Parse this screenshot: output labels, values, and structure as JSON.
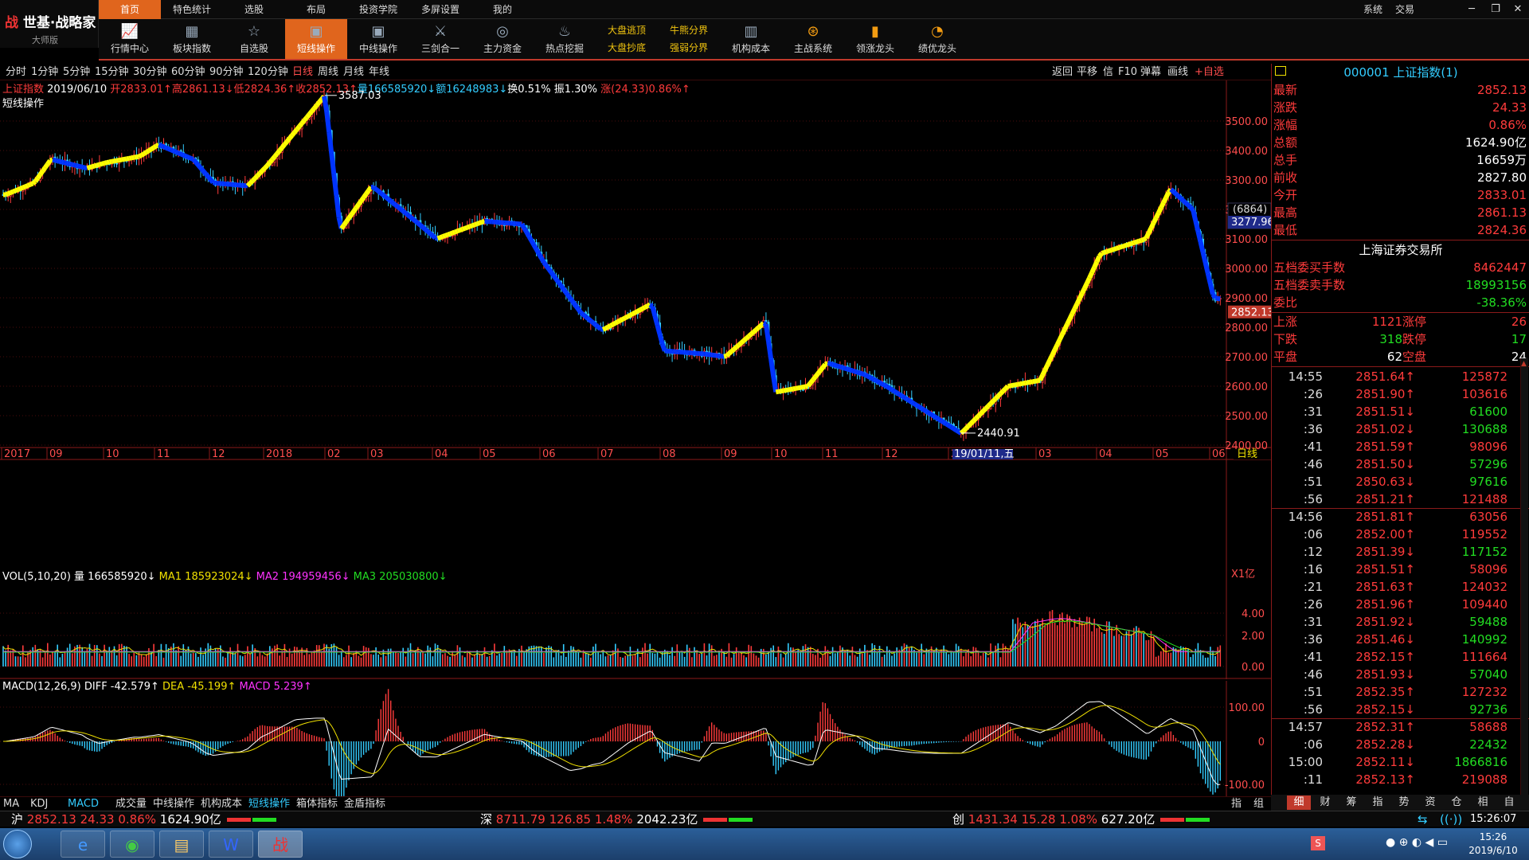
{
  "app": {
    "brand_logo": "世基·战略家",
    "edition": "大师版"
  },
  "menu": [
    "首页",
    "特色统计",
    "选股",
    "布局",
    "投资学院",
    "多屏设置",
    "我的"
  ],
  "sys_menu": [
    "系统",
    "交易"
  ],
  "toolbar": [
    {
      "label": "行情中心",
      "icon": "chart-line-icon"
    },
    {
      "label": "板块指数",
      "icon": "grid-icon"
    },
    {
      "label": "自选股",
      "icon": "star-doc-icon"
    },
    {
      "label": "短线操作",
      "icon": "monitor-icon",
      "active": true
    },
    {
      "label": "中线操作",
      "icon": "monitor-icon"
    },
    {
      "label": "三剑合一",
      "icon": "swords-icon"
    },
    {
      "label": "主力资金",
      "icon": "coins-icon"
    },
    {
      "label": "热点挖掘",
      "icon": "fire-icon"
    }
  ],
  "toolbar_pairs": [
    {
      "l1": "大盘逃顶",
      "l2": "大盘抄底"
    },
    {
      "l1": "牛熊分界",
      "l2": "强弱分界"
    }
  ],
  "toolbar_more": [
    {
      "label": "机构成本",
      "icon": "building-icon"
    },
    {
      "label": "主战系统",
      "icon": "target-icon"
    },
    {
      "label": "领涨龙头",
      "icon": "bars-icon"
    },
    {
      "label": "绩优龙头",
      "icon": "pie-icon"
    }
  ],
  "periods": [
    "分时",
    "1分钟",
    "5分钟",
    "15分钟",
    "30分钟",
    "60分钟",
    "90分钟",
    "120分钟",
    "日线",
    "周线",
    "月线",
    "年线"
  ],
  "active_period": "日线",
  "right_buttons": [
    "返回",
    "平移",
    "信",
    "F10",
    "弹幕",
    "画线",
    "+自选"
  ],
  "info": {
    "name": "上证指数",
    "date": "2019/06/10",
    "open": "开2833.01↑",
    "high": "高2861.13↓",
    "low": "低2824.36↑",
    "close": "收2852.13↑",
    "vol": "量166585920↓",
    "amt": "额16248983↓",
    "turn": "换0.51%",
    "amp": "振1.30%",
    "chg": "涨(24.33)0.86%↑",
    "indicator": "短线操作"
  },
  "annotations": {
    "high": "3587.03",
    "low": "2440.91",
    "current": "2852.13",
    "cursor_count": "(6864)",
    "cursor_price": "3277.96",
    "cursor_date": "19/01/11,五"
  },
  "price_axis": [
    "3500.00",
    "3400.00",
    "3300.00",
    "3200.00",
    "3100.00",
    "3000.00",
    "2900.00",
    "2800.00",
    "2700.00",
    "2600.00",
    "2500.00",
    "2400.00"
  ],
  "time_axis": [
    "2017",
    "09",
    "10",
    "11",
    "12",
    "2018",
    "02",
    "03",
    "04",
    "05",
    "06",
    "07",
    "08",
    "09",
    "10",
    "11",
    "12",
    "20",
    "03",
    "04",
    "05",
    "06"
  ],
  "time_axis_tag": "日线",
  "vol_panel": {
    "title": "VOL(5,10,20)",
    "vol": "量 166585920↓",
    "ma1": "MA1 185923024↓",
    "ma2": "MA2 194959456↓",
    "ma3": "MA3 205030800↓",
    "unit": "X1亿",
    "axis": [
      "4.00",
      "2.00",
      "0.00"
    ]
  },
  "macd_panel": {
    "title": "MACD(12,26,9)",
    "diff": "DIFF -42.579↑",
    "dea": "DEA -45.199↑",
    "macd": "MACD 5.239↑",
    "axis": [
      "100.00",
      "0",
      "-100.00"
    ]
  },
  "quote": {
    "title": "000001 上证指数(1)",
    "rows": [
      {
        "k": "最新",
        "v": "2852.13",
        "c": "red"
      },
      {
        "k": "涨跌",
        "v": "24.33",
        "c": "red"
      },
      {
        "k": "涨幅",
        "v": "0.86%",
        "c": "red"
      },
      {
        "k": "总额",
        "v": "1624.90亿",
        "c": "wht"
      },
      {
        "k": "总手",
        "v": "16659万",
        "c": "wht"
      },
      {
        "k": "前收",
        "v": "2827.80",
        "c": "wht"
      },
      {
        "k": "今开",
        "v": "2833.01",
        "c": "red"
      },
      {
        "k": "最高",
        "v": "2861.13",
        "c": "red"
      },
      {
        "k": "最低",
        "v": "2824.36",
        "c": "red"
      }
    ],
    "exchange": "上海证券交易所",
    "rows2": [
      {
        "k": "五档委买手数",
        "v": "8462447",
        "c": "red"
      },
      {
        "k": "五档委卖手数",
        "v": "18993156",
        "c": "grn"
      },
      {
        "k": "委比",
        "v": "-38.36%",
        "c": "grn"
      }
    ],
    "breadth": [
      {
        "k": "上涨",
        "m": "1121",
        "k2": "涨停",
        "v": "26",
        "mc": "red",
        "vc": "red"
      },
      {
        "k": "下跌",
        "m": "318",
        "k2": "跌停",
        "v": "17",
        "mc": "grn",
        "vc": "grn"
      },
      {
        "k": "平盘",
        "m": "62",
        "k2": "空盘",
        "v": "24",
        "mc": "wht",
        "vc": "wht"
      }
    ]
  },
  "ticks": [
    {
      "t": "14:55",
      "p": "2851.64↑",
      "pc": "red",
      "v": "125872",
      "vc": "red"
    },
    {
      "t": ":26",
      "p": "2851.90↑",
      "pc": "red",
      "v": "103616",
      "vc": "red"
    },
    {
      "t": ":31",
      "p": "2851.51↓",
      "pc": "red",
      "v": "61600",
      "vc": "grn"
    },
    {
      "t": ":36",
      "p": "2851.02↓",
      "pc": "red",
      "v": "130688",
      "vc": "grn"
    },
    {
      "t": ":41",
      "p": "2851.59↑",
      "pc": "red",
      "v": "98096",
      "vc": "red"
    },
    {
      "t": ":46",
      "p": "2851.50↓",
      "pc": "red",
      "v": "57296",
      "vc": "grn"
    },
    {
      "t": ":51",
      "p": "2850.63↓",
      "pc": "red",
      "v": "97616",
      "vc": "grn"
    },
    {
      "t": ":56",
      "p": "2851.21↑",
      "pc": "red",
      "v": "121488",
      "vc": "red"
    },
    {
      "t": "14:56",
      "p": "2851.81↑",
      "pc": "red",
      "v": "63056",
      "vc": "red"
    },
    {
      "t": ":06",
      "p": "2852.00↑",
      "pc": "red",
      "v": "119552",
      "vc": "red"
    },
    {
      "t": ":12",
      "p": "2851.39↓",
      "pc": "red",
      "v": "117152",
      "vc": "grn"
    },
    {
      "t": ":16",
      "p": "2851.51↑",
      "pc": "red",
      "v": "58096",
      "vc": "red"
    },
    {
      "t": ":21",
      "p": "2851.63↑",
      "pc": "red",
      "v": "124032",
      "vc": "red"
    },
    {
      "t": ":26",
      "p": "2851.96↑",
      "pc": "red",
      "v": "109440",
      "vc": "red"
    },
    {
      "t": ":31",
      "p": "2851.92↓",
      "pc": "red",
      "v": "59488",
      "vc": "grn"
    },
    {
      "t": ":36",
      "p": "2851.46↓",
      "pc": "red",
      "v": "140992",
      "vc": "grn"
    },
    {
      "t": ":41",
      "p": "2852.15↑",
      "pc": "red",
      "v": "111664",
      "vc": "red"
    },
    {
      "t": ":46",
      "p": "2851.93↓",
      "pc": "red",
      "v": "57040",
      "vc": "grn"
    },
    {
      "t": ":51",
      "p": "2852.35↑",
      "pc": "red",
      "v": "127232",
      "vc": "red"
    },
    {
      "t": ":56",
      "p": "2852.15↓",
      "pc": "red",
      "v": "92736",
      "vc": "grn"
    },
    {
      "t": "14:57",
      "p": "2852.31↑",
      "pc": "red",
      "v": "58688",
      "vc": "red"
    },
    {
      "t": ":06",
      "p": "2852.28↓",
      "pc": "red",
      "v": "22432",
      "vc": "grn"
    },
    {
      "t": "15:00",
      "p": "2852.11↓",
      "pc": "red",
      "v": "1866816",
      "vc": "grn"
    },
    {
      "t": ":11",
      "p": "2852.13↑",
      "pc": "red",
      "v": "219088",
      "vc": "red"
    }
  ],
  "ind_tabs": [
    "MA",
    "KDJ",
    "MACD",
    "成交量",
    "中线操作",
    "机构成本",
    "短线操作",
    "箱体指标",
    "金盾指标"
  ],
  "ind_tabs_active": [
    "MACD",
    "短线操作"
  ],
  "side_tabs": [
    "指",
    "组"
  ],
  "right_tabs": [
    "细",
    "财",
    "筹",
    "指",
    "势",
    "资",
    "仓",
    "相",
    "自"
  ],
  "status": {
    "sh": {
      "k": "沪",
      "p": "2852.13",
      "c": "24.33",
      "pct": "0.86%",
      "amt": "1624.90亿"
    },
    "sz": {
      "k": "深",
      "p": "8711.79",
      "c": "126.85",
      "pct": "1.48%",
      "amt": "2042.23亿"
    },
    "cy": {
      "k": "创",
      "p": "1431.34",
      "c": "15.28",
      "pct": "1.08%",
      "amt": "627.20亿"
    },
    "time": "15:26:07"
  },
  "taskbar": {
    "time": "15:26",
    "date": "2019/6/10"
  },
  "chart_data": {
    "type": "candlestick",
    "title": "上证指数 日线",
    "price_range": [
      2400,
      3600
    ],
    "trend_points": [
      {
        "x": "2017-08",
        "y": 3250
      },
      {
        "x": "2017-08-20",
        "y": 3290
      },
      {
        "x": "2017-09",
        "y": 3370
      },
      {
        "x": "2017-09-20",
        "y": 3340
      },
      {
        "x": "2017-10",
        "y": 3360
      },
      {
        "x": "2017-10-20",
        "y": 3380
      },
      {
        "x": "2017-11",
        "y": 3420
      },
      {
        "x": "2017-11-20",
        "y": 3370
      },
      {
        "x": "2017-12",
        "y": 3290
      },
      {
        "x": "2017-12-20",
        "y": 3280
      },
      {
        "x": "2018-01",
        "y": 3350
      },
      {
        "x": "2018-01-29",
        "y": 3587
      },
      {
        "x": "2018-02-09",
        "y": 3130
      },
      {
        "x": "2018-03",
        "y": 3280
      },
      {
        "x": "2018-03-23",
        "y": 3150
      },
      {
        "x": "2018-04",
        "y": 3100
      },
      {
        "x": "2018-05",
        "y": 3160
      },
      {
        "x": "2018-05-20",
        "y": 3150
      },
      {
        "x": "2018-06",
        "y": 3020
      },
      {
        "x": "2018-06-20",
        "y": 2850
      },
      {
        "x": "2018-07",
        "y": 2790
      },
      {
        "x": "2018-07-25",
        "y": 2880
      },
      {
        "x": "2018-08",
        "y": 2720
      },
      {
        "x": "2018-08-20",
        "y": 2710
      },
      {
        "x": "2018-09",
        "y": 2700
      },
      {
        "x": "2018-09-25",
        "y": 2820
      },
      {
        "x": "2018-10",
        "y": 2580
      },
      {
        "x": "2018-10-20",
        "y": 2600
      },
      {
        "x": "2018-11",
        "y": 2680
      },
      {
        "x": "2018-11-20",
        "y": 2640
      },
      {
        "x": "2018-12",
        "y": 2600
      },
      {
        "x": "2019-01-04",
        "y": 2440
      },
      {
        "x": "2019-01-20",
        "y": 2600
      },
      {
        "x": "2019-02",
        "y": 2620
      },
      {
        "x": "2019-02-25",
        "y": 2960
      },
      {
        "x": "2019-03",
        "y": 3050
      },
      {
        "x": "2019-03-25",
        "y": 3100
      },
      {
        "x": "2019-04-08",
        "y": 3270
      },
      {
        "x": "2019-04-20",
        "y": 3200
      },
      {
        "x": "2019-05",
        "y": 2900
      },
      {
        "x": "2019-05-20",
        "y": 2880
      },
      {
        "x": "2019-06-10",
        "y": 2852
      }
    ]
  }
}
